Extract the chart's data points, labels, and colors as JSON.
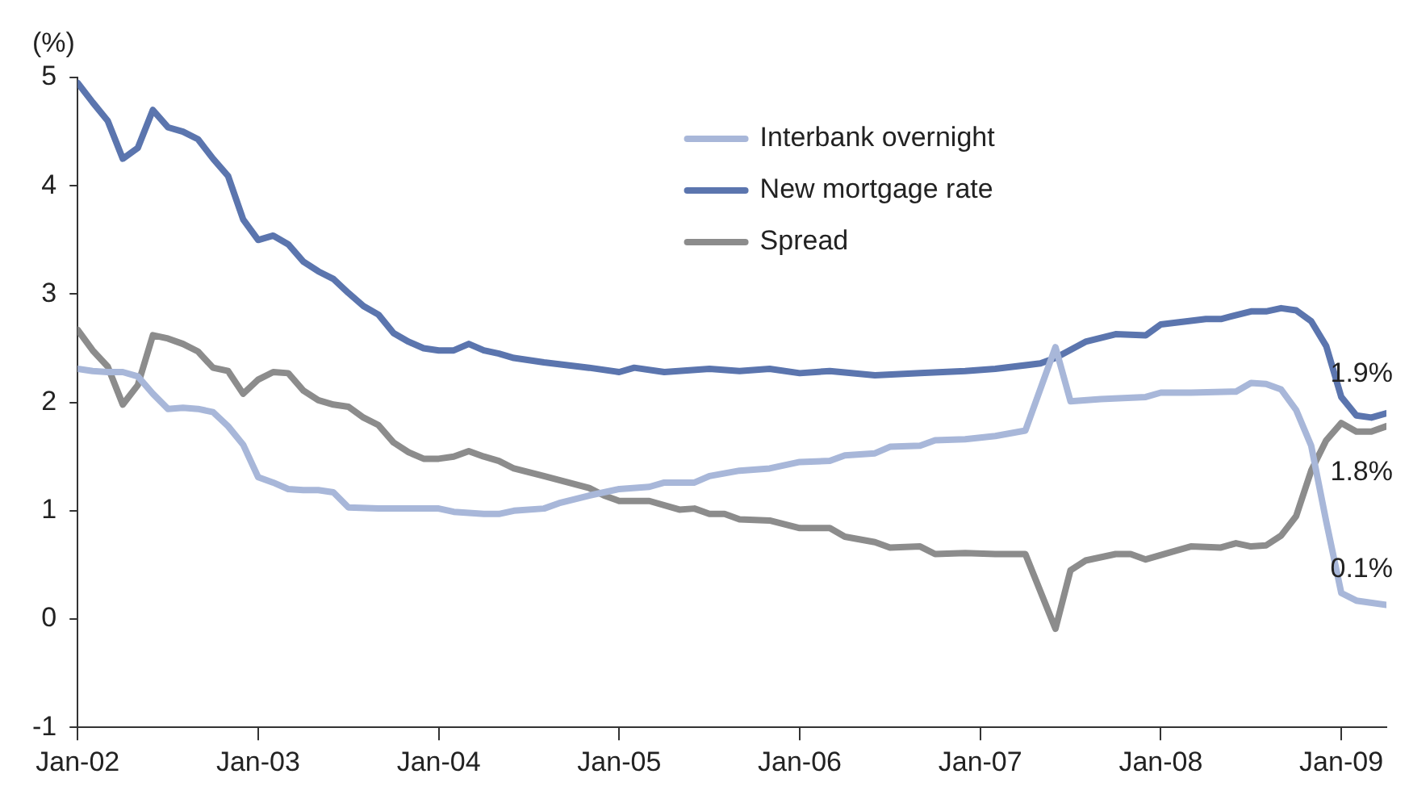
{
  "chart_data": {
    "type": "line",
    "ylabel": "(%)",
    "xlim": [
      "2002-01",
      "2009-04"
    ],
    "ylim": [
      -1,
      5
    ],
    "yticks": [
      -1,
      0,
      1,
      2,
      3,
      4,
      5
    ],
    "xticks": [
      {
        "value": "2002-01",
        "label": "Jan-02"
      },
      {
        "value": "2003-01",
        "label": "Jan-03"
      },
      {
        "value": "2004-01",
        "label": "Jan-04"
      },
      {
        "value": "2005-01",
        "label": "Jan-05"
      },
      {
        "value": "2006-01",
        "label": "Jan-06"
      },
      {
        "value": "2007-01",
        "label": "Jan-07"
      },
      {
        "value": "2008-01",
        "label": "Jan-08"
      },
      {
        "value": "2009-01",
        "label": "Jan-09"
      }
    ],
    "grid": false,
    "legend": "top",
    "marker": "none",
    "line_style": "solid",
    "annotations": [
      {
        "text": "1.9%",
        "x": "2009-04",
        "y": 1.9
      },
      {
        "text": "1.8%",
        "x": "2009-04",
        "y": 1.8
      },
      {
        "text": "0.1%",
        "x": "2009-04",
        "y": 0.1
      }
    ],
    "series": [
      {
        "name": "Interbank overnight",
        "color": "#a8b7d9",
        "x": [
          "2002-01",
          "2002-02",
          "2002-03",
          "2002-04",
          "2002-05",
          "2002-06",
          "2002-07",
          "2002-08",
          "2002-09",
          "2002-10",
          "2002-11",
          "2002-12",
          "2003-01",
          "2003-02",
          "2003-03",
          "2003-04",
          "2003-05",
          "2003-06",
          "2003-07",
          "2003-09",
          "2004-01",
          "2004-02",
          "2004-04",
          "2004-05",
          "2004-06",
          "2004-08",
          "2004-09",
          "2004-11",
          "2005-01",
          "2005-03",
          "2005-04",
          "2005-06",
          "2005-07",
          "2005-09",
          "2005-11",
          "2006-01",
          "2006-03",
          "2006-04",
          "2006-06",
          "2006-07",
          "2006-09",
          "2006-10",
          "2006-12",
          "2007-02",
          "2007-04",
          "2007-06",
          "2007-07",
          "2007-09",
          "2007-12",
          "2008-01",
          "2008-03",
          "2008-06",
          "2008-07",
          "2008-08",
          "2008-09",
          "2008-10",
          "2008-11",
          "2008-12",
          "2009-01",
          "2009-02",
          "2009-04"
        ],
        "values": [
          2.31,
          2.29,
          2.28,
          2.28,
          2.24,
          2.08,
          1.94,
          1.95,
          1.94,
          1.91,
          1.78,
          1.61,
          1.31,
          1.26,
          1.2,
          1.19,
          1.19,
          1.17,
          1.03,
          1.02,
          1.02,
          0.99,
          0.97,
          0.97,
          1.0,
          1.02,
          1.07,
          1.14,
          1.2,
          1.22,
          1.26,
          1.26,
          1.32,
          1.37,
          1.39,
          1.45,
          1.46,
          1.51,
          1.53,
          1.59,
          1.6,
          1.65,
          1.66,
          1.69,
          1.74,
          2.51,
          2.01,
          2.03,
          2.05,
          2.09,
          2.09,
          2.1,
          2.18,
          2.17,
          2.12,
          1.93,
          1.6,
          0.9,
          0.24,
          0.17,
          0.13
        ]
      },
      {
        "name": "New mortgage rate",
        "color": "#5b75ae",
        "x": [
          "2002-01",
          "2002-02",
          "2002-03",
          "2002-04",
          "2002-05",
          "2002-06",
          "2002-07",
          "2002-08",
          "2002-09",
          "2002-10",
          "2002-11",
          "2002-12",
          "2003-01",
          "2003-02",
          "2003-03",
          "2003-04",
          "2003-05",
          "2003-06",
          "2003-07",
          "2003-08",
          "2003-09",
          "2003-10",
          "2003-11",
          "2003-12",
          "2004-01",
          "2004-02",
          "2004-03",
          "2004-04",
          "2004-05",
          "2004-06",
          "2004-08",
          "2004-11",
          "2005-01",
          "2005-02",
          "2005-04",
          "2005-07",
          "2005-09",
          "2005-11",
          "2006-01",
          "2006-03",
          "2006-06",
          "2006-09",
          "2006-12",
          "2007-02",
          "2007-05",
          "2007-06",
          "2007-08",
          "2007-10",
          "2007-12",
          "2008-01",
          "2008-04",
          "2008-05",
          "2008-07",
          "2008-08",
          "2008-09",
          "2008-10",
          "2008-11",
          "2008-12",
          "2009-01",
          "2009-02",
          "2009-03",
          "2009-04"
        ],
        "values": [
          4.95,
          4.77,
          4.6,
          4.25,
          4.35,
          4.7,
          4.54,
          4.5,
          4.43,
          4.25,
          4.09,
          3.69,
          3.5,
          3.54,
          3.46,
          3.3,
          3.21,
          3.14,
          3.01,
          2.89,
          2.81,
          2.64,
          2.56,
          2.5,
          2.48,
          2.48,
          2.54,
          2.48,
          2.45,
          2.41,
          2.37,
          2.32,
          2.28,
          2.32,
          2.28,
          2.31,
          2.29,
          2.31,
          2.27,
          2.29,
          2.25,
          2.27,
          2.29,
          2.31,
          2.36,
          2.41,
          2.56,
          2.63,
          2.62,
          2.72,
          2.77,
          2.77,
          2.84,
          2.84,
          2.87,
          2.85,
          2.75,
          2.52,
          2.05,
          1.88,
          1.86,
          1.9
        ]
      },
      {
        "name": "Spread",
        "color": "#8c8c8c",
        "x": [
          "2002-01",
          "2002-02",
          "2002-03",
          "2002-04",
          "2002-05",
          "2002-06",
          "2002-07",
          "2002-08",
          "2002-09",
          "2002-10",
          "2002-11",
          "2002-12",
          "2003-01",
          "2003-02",
          "2003-03",
          "2003-04",
          "2003-05",
          "2003-06",
          "2003-07",
          "2003-08",
          "2003-09",
          "2003-10",
          "2003-11",
          "2003-12",
          "2004-01",
          "2004-02",
          "2004-03",
          "2004-04",
          "2004-05",
          "2004-06",
          "2004-08",
          "2004-11",
          "2004-12",
          "2005-01",
          "2005-03",
          "2005-05",
          "2005-06",
          "2005-07",
          "2005-08",
          "2005-09",
          "2005-11",
          "2006-01",
          "2006-03",
          "2006-04",
          "2006-06",
          "2006-07",
          "2006-09",
          "2006-10",
          "2006-12",
          "2007-02",
          "2007-04",
          "2007-06",
          "2007-07",
          "2007-08",
          "2007-10",
          "2007-11",
          "2007-12",
          "2008-02",
          "2008-03",
          "2008-05",
          "2008-06",
          "2008-07",
          "2008-08",
          "2008-09",
          "2008-10",
          "2008-11",
          "2008-12",
          "2009-01",
          "2009-02",
          "2009-03",
          "2009-04"
        ],
        "values": [
          2.67,
          2.48,
          2.33,
          1.98,
          2.16,
          2.62,
          2.59,
          2.54,
          2.47,
          2.32,
          2.29,
          2.08,
          2.21,
          2.28,
          2.27,
          2.11,
          2.02,
          1.98,
          1.96,
          1.86,
          1.79,
          1.63,
          1.54,
          1.48,
          1.48,
          1.5,
          1.55,
          1.5,
          1.46,
          1.39,
          1.32,
          1.21,
          1.14,
          1.09,
          1.09,
          1.01,
          1.02,
          0.97,
          0.97,
          0.92,
          0.91,
          0.84,
          0.84,
          0.76,
          0.71,
          0.66,
          0.67,
          0.6,
          0.61,
          0.6,
          0.6,
          -0.09,
          0.45,
          0.54,
          0.6,
          0.6,
          0.55,
          0.63,
          0.67,
          0.66,
          0.7,
          0.67,
          0.68,
          0.77,
          0.95,
          1.37,
          1.65,
          1.81,
          1.73,
          1.73,
          1.78
        ]
      }
    ]
  }
}
